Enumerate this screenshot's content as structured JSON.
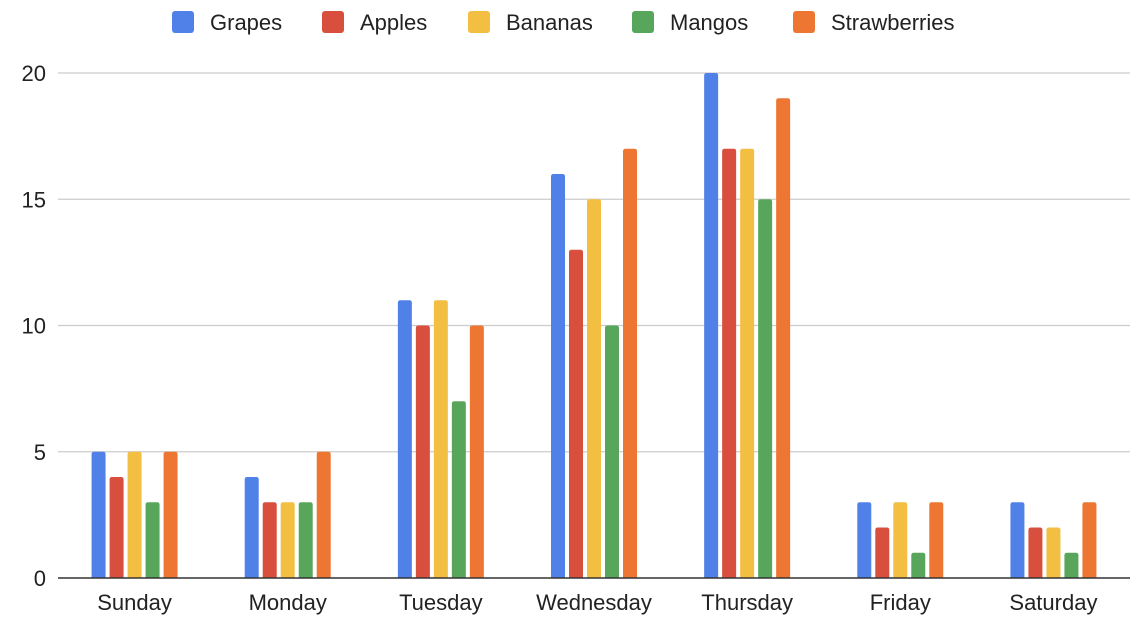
{
  "chart_data": {
    "type": "bar",
    "title": "",
    "xlabel": "",
    "ylabel": "",
    "categories": [
      "Sunday",
      "Monday",
      "Tuesday",
      "Wednesday",
      "Thursday",
      "Friday",
      "Saturday"
    ],
    "series": [
      {
        "name": "Grapes",
        "color": "#4f81e8",
        "values": [
          5,
          4,
          11,
          16,
          20,
          3,
          3
        ]
      },
      {
        "name": "Apples",
        "color": "#d94f3d",
        "values": [
          4,
          3,
          10,
          13,
          17,
          2,
          2
        ]
      },
      {
        "name": "Bananas",
        "color": "#f2bf42",
        "values": [
          5,
          3,
          11,
          15,
          17,
          3,
          2
        ]
      },
      {
        "name": "Mangos",
        "color": "#58a65c",
        "values": [
          3,
          3,
          7,
          10,
          15,
          1,
          1
        ]
      },
      {
        "name": "Strawberries",
        "color": "#ed7732",
        "values": [
          5,
          5,
          10,
          17,
          19,
          3,
          3
        ]
      }
    ],
    "ylim": [
      0,
      20
    ],
    "yticks": [
      0,
      5,
      10,
      15,
      20
    ],
    "grid": true,
    "legend_position": "top"
  }
}
